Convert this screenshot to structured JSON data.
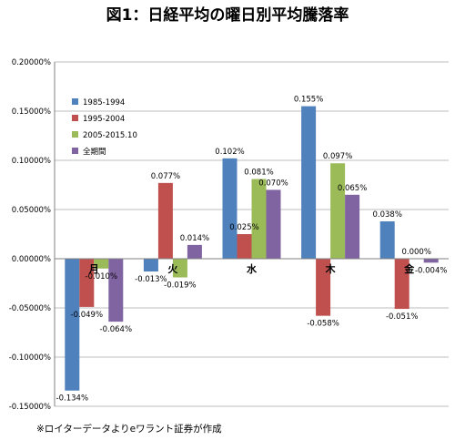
{
  "chart_data": {
    "type": "bar",
    "title": "図1：日経平均の曜日別平均騰落率",
    "categories": [
      "月",
      "火",
      "水",
      "木",
      "金"
    ],
    "series": [
      {
        "name": "1985-1994",
        "color": "#4F81BD",
        "values": [
          -0.134,
          -0.013,
          0.102,
          0.155,
          0.038
        ],
        "labels": [
          "-0.134%",
          "-0.013%",
          "0.102%",
          "0.155%",
          "0.038%"
        ]
      },
      {
        "name": "1995-2004",
        "color": "#C0504D",
        "values": [
          -0.049,
          0.077,
          0.025,
          -0.058,
          -0.051
        ],
        "labels": [
          "-0.049%",
          "0.077%",
          "0.025%",
          "-0.058%",
          "-0.051%"
        ]
      },
      {
        "name": "2005-2015.10",
        "color": "#9BBB59",
        "values": [
          -0.01,
          -0.019,
          0.081,
          0.097,
          0.0
        ],
        "labels": [
          "-0.010%",
          "-0.019%",
          "0.081%",
          "0.097%",
          "0.000%"
        ]
      },
      {
        "name": "全期間",
        "color": "#8064A2",
        "values": [
          -0.064,
          0.014,
          0.07,
          0.065,
          -0.004
        ],
        "labels": [
          "-0.064%",
          "0.014%",
          "0.070%",
          "0.065%",
          "-0.004%"
        ]
      }
    ],
    "ylim": [
      -0.15,
      0.2
    ],
    "yticks": [
      0.2,
      0.15,
      0.1,
      0.05,
      0.0,
      -0.05,
      -0.1,
      -0.15
    ],
    "ytick_labels": [
      "0.20000%",
      "0.15000%",
      "0.10000%",
      "0.05000%",
      "0.00000%",
      "-0.05000%",
      "-0.10000%",
      "-0.15000%"
    ],
    "grid": true,
    "legend_position": "top-left",
    "xlabel": "",
    "ylabel": ""
  },
  "footnote": "※ロイターデータよりeワラント証券が作成"
}
